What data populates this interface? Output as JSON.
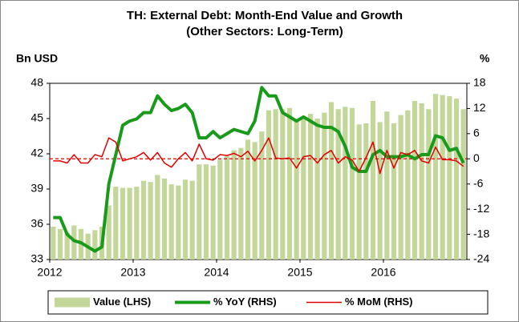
{
  "chart_data": {
    "type": "combo",
    "title": "TH: External Debt: Month-End Value and Growth",
    "subtitle": "(Other Sectors: Long-Term)",
    "y_label": "Bn USD",
    "y2_label": "%",
    "categories": [
      "2012",
      null,
      null,
      null,
      null,
      null,
      null,
      null,
      null,
      null,
      null,
      null,
      "2013",
      null,
      null,
      null,
      null,
      null,
      null,
      null,
      null,
      null,
      null,
      null,
      "2014",
      null,
      null,
      null,
      null,
      null,
      null,
      null,
      null,
      null,
      null,
      null,
      "2015",
      null,
      null,
      null,
      null,
      null,
      null,
      null,
      null,
      null,
      null,
      null,
      "2016",
      null,
      null,
      null,
      null,
      null,
      null,
      null,
      null,
      null,
      null,
      null
    ],
    "ylim": [
      33,
      48
    ],
    "yticks": [
      33,
      36,
      39,
      42,
      45,
      48
    ],
    "y2lim": [
      -24,
      18
    ],
    "y2ticks": [
      -24,
      -18,
      -12,
      -6,
      0,
      6,
      12,
      18
    ],
    "legend": "bottom",
    "series": [
      {
        "name": "Value (LHS)",
        "type": "bar",
        "color": "#c4d79b",
        "values": [
          35.8,
          35.6,
          35.3,
          35.9,
          35.6,
          35.2,
          35.5,
          35.8,
          37.6,
          39.2,
          39.1,
          39.1,
          39.2,
          39.7,
          39.6,
          40.2,
          39.9,
          39.4,
          39.3,
          39.8,
          39.7,
          41.1,
          41.1,
          41.0,
          41.5,
          41.8,
          42.3,
          42.5,
          43.2,
          43.0,
          43.9,
          45.7,
          45.8,
          45.8,
          45.9,
          44.8,
          45.0,
          45.4,
          45.0,
          45.5,
          46.4,
          45.8,
          46.0,
          45.9,
          44.5,
          44.6,
          46.5,
          44.7,
          45.6,
          44.6,
          45.3,
          45.7,
          46.5,
          46.3,
          45.8,
          47.1,
          47.0,
          46.9,
          46.7,
          45.8
        ]
      },
      {
        "name": "% YoY (RHS)",
        "type": "line",
        "axis": "y2",
        "color": "#1a9a1a",
        "values": [
          -14,
          -14,
          -18,
          -19.5,
          -20,
          -21,
          -22,
          -21,
          -6,
          1,
          8,
          9,
          9.5,
          11,
          11,
          15,
          13,
          11.5,
          12,
          13,
          11,
          5,
          5,
          6.5,
          5,
          6,
          7,
          6.5,
          6,
          9,
          17,
          15,
          15,
          11,
          10,
          9,
          10,
          9,
          8,
          7.5,
          7.5,
          6.5,
          3,
          -2,
          -3,
          -3,
          1,
          2,
          0.5,
          0.5,
          0.5,
          1,
          0,
          1,
          1,
          5.5,
          5,
          2,
          2.5,
          -1
        ]
      },
      {
        "name": "% MoM (RHS)",
        "type": "line",
        "axis": "y2",
        "color": "#e00000",
        "values": [
          -0.5,
          -0.5,
          -1,
          1,
          -1,
          -1,
          1,
          0.5,
          5,
          4,
          -0.5,
          0,
          0.5,
          1.5,
          -0.3,
          1.5,
          -1,
          -2,
          0,
          1.5,
          -0.5,
          3.5,
          0,
          -0.3,
          1,
          0.8,
          1.3,
          0.5,
          1.8,
          -0.5,
          2,
          5,
          0.2,
          0,
          0.2,
          -2.2,
          0.5,
          0.8,
          -1,
          1,
          2,
          -1,
          0.5,
          -0.3,
          -3,
          0.3,
          4,
          -3.5,
          2,
          -2.2,
          1.5,
          1,
          2,
          -0.5,
          -1,
          2.8,
          -0.2,
          -0.2,
          -0.5,
          -1.8
        ]
      }
    ]
  }
}
